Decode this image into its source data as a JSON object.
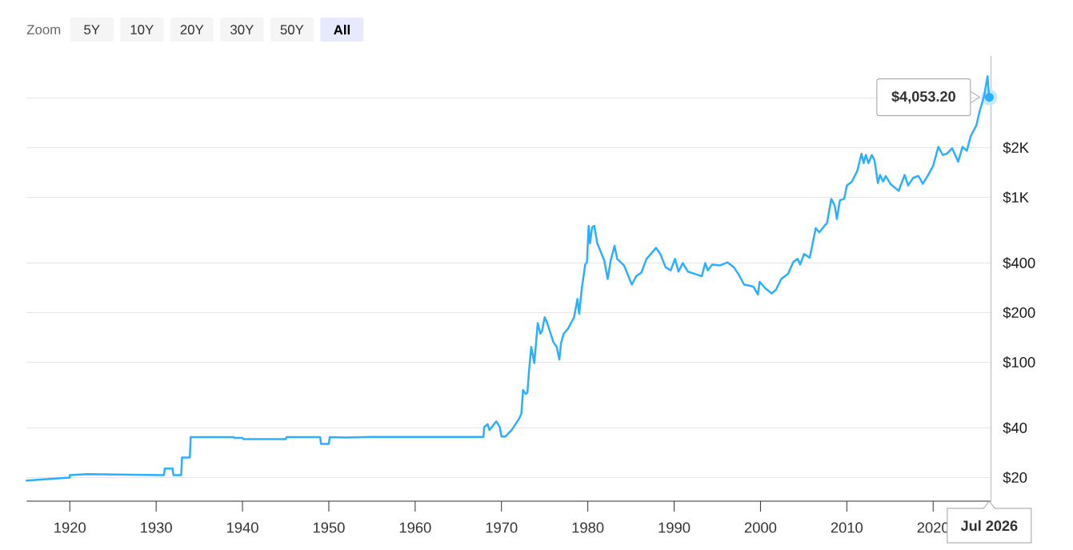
{
  "chart_data": {
    "type": "line",
    "color": "#2caffe",
    "x": [
      1915.0,
      1920.0,
      1920.0,
      1922.0,
      1930.9,
      1931.0,
      1931.9,
      1932.0,
      1932.9,
      1933.0,
      1933.9,
      1934.0,
      1939.0,
      1939.1,
      1940.0,
      1940.1,
      1945.0,
      1945.1,
      1949.0,
      1949.1,
      1950.0,
      1950.1,
      1952.0,
      1955.0,
      1967.9,
      1968.0,
      1968.4,
      1968.6,
      1969.4,
      1969.8,
      1970.0,
      1970.45,
      1971.2,
      1972.0,
      1972.3,
      1972.5,
      1972.8,
      1973.0,
      1973.2,
      1973.45,
      1973.8,
      1974.2,
      1974.5,
      1974.7,
      1975.0,
      1975.3,
      1975.7,
      1976.0,
      1976.4,
      1976.7,
      1976.9,
      1977.2,
      1977.7,
      1978.2,
      1978.4,
      1978.8,
      1979.0,
      1979.3,
      1979.7,
      1979.9,
      1980.1,
      1980.25,
      1980.5,
      1980.75,
      1981.1,
      1981.6,
      1981.9,
      1982.3,
      1982.65,
      1983.1,
      1983.4,
      1984.2,
      1985.1,
      1985.6,
      1986.2,
      1986.8,
      1987.45,
      1987.9,
      1988.4,
      1989.0,
      1989.6,
      1990.1,
      1990.5,
      1991.0,
      1991.6,
      1992.4,
      1993.2,
      1993.6,
      1993.9,
      1994.4,
      1995.3,
      1996.2,
      1996.9,
      1997.5,
      1998.1,
      1998.7,
      1999.2,
      1999.7,
      1999.9,
      2000.6,
      2001.3,
      2001.8,
      2002.4,
      2003.2,
      2003.8,
      2004.3,
      2004.6,
      2005.05,
      2005.7,
      2006.4,
      2006.8,
      2007.4,
      2007.7,
      2008.2,
      2008.6,
      2008.85,
      2009.2,
      2009.7,
      2010.0,
      2010.6,
      2011.2,
      2011.7,
      2011.95,
      2012.2,
      2012.5,
      2012.9,
      2013.2,
      2013.6,
      2013.85,
      2014.2,
      2014.5,
      2015.1,
      2016.0,
      2016.7,
      2017.1,
      2017.7,
      2018.3,
      2018.8,
      2019.35,
      2020.0,
      2020.6,
      2021.1,
      2021.6,
      2022.2,
      2022.9,
      2023.4,
      2023.9,
      2024.35,
      2025.0,
      2025.4,
      2025.9,
      2026.3,
      2026.4,
      2026.5
    ],
    "values": [
      19.2,
      20.0,
      20.7,
      21.0,
      20.7,
      22.7,
      22.7,
      20.7,
      20.7,
      26.5,
      26.5,
      35.2,
      35.2,
      34.8,
      34.8,
      34.2,
      34.2,
      35.2,
      35.2,
      32.0,
      32.0,
      35.2,
      35.0,
      35.3,
      35.3,
      40.5,
      42.2,
      38.9,
      43.9,
      40.5,
      35.5,
      35.5,
      39,
      45.2,
      48.8,
      68,
      64.3,
      65.6,
      90,
      124,
      99,
      173,
      149,
      155,
      188,
      173,
      149,
      133,
      124,
      104,
      131,
      149,
      160,
      179,
      187,
      242,
      197,
      280,
      392,
      406,
      672,
      527,
      660,
      672,
      527,
      454,
      415,
      320,
      415,
      509,
      424,
      387,
      296,
      333,
      350,
      424,
      464,
      495,
      454,
      378,
      361,
      424,
      355,
      400,
      355,
      344,
      333,
      400,
      361,
      392,
      387,
      404,
      378,
      339,
      296,
      292,
      287,
      258,
      308,
      280,
      262,
      276,
      320,
      344,
      406,
      424,
      392,
      454,
      431,
      651,
      614,
      672,
      698,
      980,
      892,
      740,
      962,
      980,
      1182,
      1250,
      1444,
      1842,
      1615,
      1810,
      1615,
      1810,
      1684,
      1222,
      1370,
      1250,
      1347,
      1200,
      1096,
      1370,
      1182,
      1317,
      1350,
      1210,
      1347,
      1556,
      2026,
      1810,
      1842,
      1986,
      1648,
      2026,
      1916,
      2354,
      2732,
      3358,
      4110,
      5430,
      4580,
      4053.2
    ],
    "xlim": [
      1915,
      2026.7
    ],
    "xticks": [
      1920,
      1930,
      1940,
      1950,
      1960,
      1970,
      1980,
      1990,
      2000,
      2010,
      2020
    ],
    "ylim": [
      14.4,
      7200
    ],
    "yticks": [
      {
        "value": 20,
        "label": "$20"
      },
      {
        "value": 40,
        "label": "$40"
      },
      {
        "value": 100,
        "label": "$100"
      },
      {
        "value": 200,
        "label": "$200"
      },
      {
        "value": 400,
        "label": "$400"
      },
      {
        "value": 1000,
        "label": "$1K"
      },
      {
        "value": 2000,
        "label": "$2K"
      },
      {
        "value": 4000,
        "label": null
      }
    ],
    "log": "y",
    "grid": "y",
    "annotations": [
      "Zoom",
      "5Y",
      "10Y",
      "20Y",
      "30Y",
      "50Y",
      "All",
      {
        "text": "$4,053.20",
        "x": 2026.5,
        "y": 4053.2
      },
      "Jul 2026"
    ]
  }
}
